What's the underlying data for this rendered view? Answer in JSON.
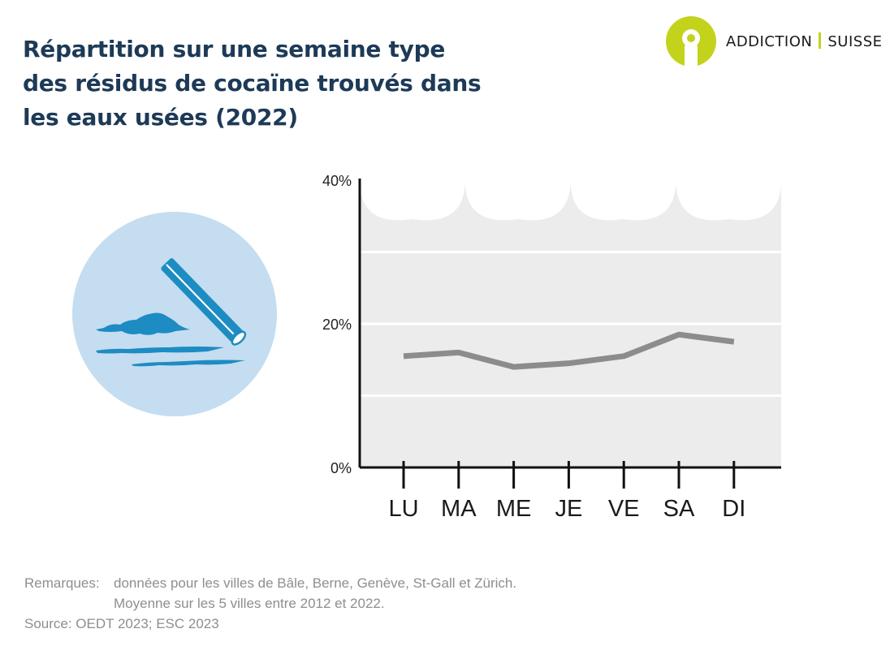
{
  "title": {
    "line1": "Répartition sur une semaine type",
    "line2": "des résidus de cocaïne trouvés dans",
    "line3": "les eaux usées (2022)"
  },
  "logo": {
    "left": "ADDICTION",
    "right": "SUISSE"
  },
  "colors": {
    "title": "#1d3a57",
    "logo_green": "#c3d31c",
    "circle_bg": "#c5ddf0",
    "illustration_blue": "#1d8cc3",
    "plot_bg": "#ececec",
    "line": "#8c8c8c",
    "axis": "#111111",
    "notes": "#8e8e8e"
  },
  "icons": {
    "logo": "addiction-suisse-logo-icon",
    "illustration": "cocaine-straw-icon"
  },
  "chart_data": {
    "type": "line",
    "categories": [
      "LU",
      "MA",
      "ME",
      "JE",
      "VE",
      "SA",
      "DI"
    ],
    "series": [
      {
        "values": [
          15.5,
          16.0,
          14.0,
          14.5,
          15.5,
          18.5,
          17.5
        ]
      }
    ],
    "ylim": [
      0,
      40
    ],
    "yticks": [
      0,
      20,
      40
    ],
    "ytick_labels": [
      "0%",
      "20%",
      "40%"
    ],
    "gridlines": [
      10,
      20,
      30
    ],
    "title": "",
    "xlabel": "",
    "ylabel": ""
  },
  "notes": {
    "label": "Remarques:",
    "line1": "données pour les villes de Bâle, Berne, Genève, St-Gall et Zürich.",
    "line2": "Moyenne sur les 5 villes entre 2012 et 2022.",
    "source": "Source: OEDT 2023; ESC 2023"
  }
}
